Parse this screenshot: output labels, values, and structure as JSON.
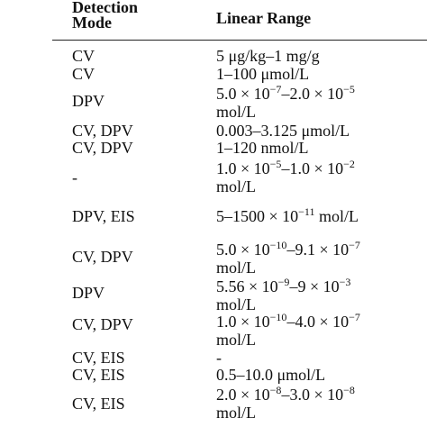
{
  "header": {
    "mode": "Detection Mode",
    "range": "Linear Range"
  },
  "table": {
    "rows": [
      {
        "mode": "CV",
        "range": [
          [
            "5 μg/kg–1 mg/g"
          ]
        ]
      },
      {
        "mode": "CV",
        "range": [
          [
            "1–100 μmol/L"
          ]
        ]
      },
      {
        "mode": "DPV",
        "range": [
          [
            "5.0 × 10",
            {
              "sup": "−7"
            },
            "–2.0 × 10",
            {
              "sup": "−5"
            }
          ],
          [
            "mol/L"
          ]
        ]
      },
      {
        "mode": "CV, DPV",
        "range": [
          [
            "0.003–3.125 μmol/L"
          ]
        ]
      },
      {
        "mode": "CV, DPV",
        "range": [
          [
            "1–120 nmol/L"
          ]
        ]
      },
      {
        "mode": "-",
        "range": [
          [
            "1.0 × 10",
            {
              "sup": "−5"
            },
            "–1.0 × 10",
            {
              "sup": "−2"
            }
          ],
          [
            "mol/L"
          ]
        ]
      },
      {
        "mode": "DPV, EIS",
        "range": [
          [
            "5–1500 × 10",
            {
              "sup": "−11"
            },
            " mol/L"
          ]
        ]
      },
      {
        "mode": "CV, DPV",
        "range": [
          [
            "5.0 × 10",
            {
              "sup": "−10"
            },
            "–9.1 × 10",
            {
              "sup": "−7"
            }
          ],
          [
            "mol/L"
          ]
        ]
      },
      {
        "mode": "DPV",
        "range": [
          [
            "5.56 × 10",
            {
              "sup": "−9"
            },
            "–9 × 10",
            {
              "sup": "−3"
            }
          ],
          [
            "mol/L"
          ]
        ]
      },
      {
        "mode": "CV, DPV",
        "range": [
          [
            "1.0 × 10",
            {
              "sup": "−10"
            },
            "–4.0 × 10",
            {
              "sup": "−7"
            }
          ],
          [
            "mol/L"
          ]
        ]
      },
      {
        "mode": "CV, EIS",
        "range": [
          [
            "-"
          ]
        ]
      },
      {
        "mode": "CV, EIS",
        "range": [
          [
            "0.5–10.0 μmol/L"
          ]
        ]
      },
      {
        "mode": "CV, EIS",
        "range": [
          [
            "2.0 × 10",
            {
              "sup": "−8"
            },
            "–3.0 × 10",
            {
              "sup": "−8"
            }
          ],
          [
            "mol/L"
          ]
        ]
      }
    ]
  }
}
